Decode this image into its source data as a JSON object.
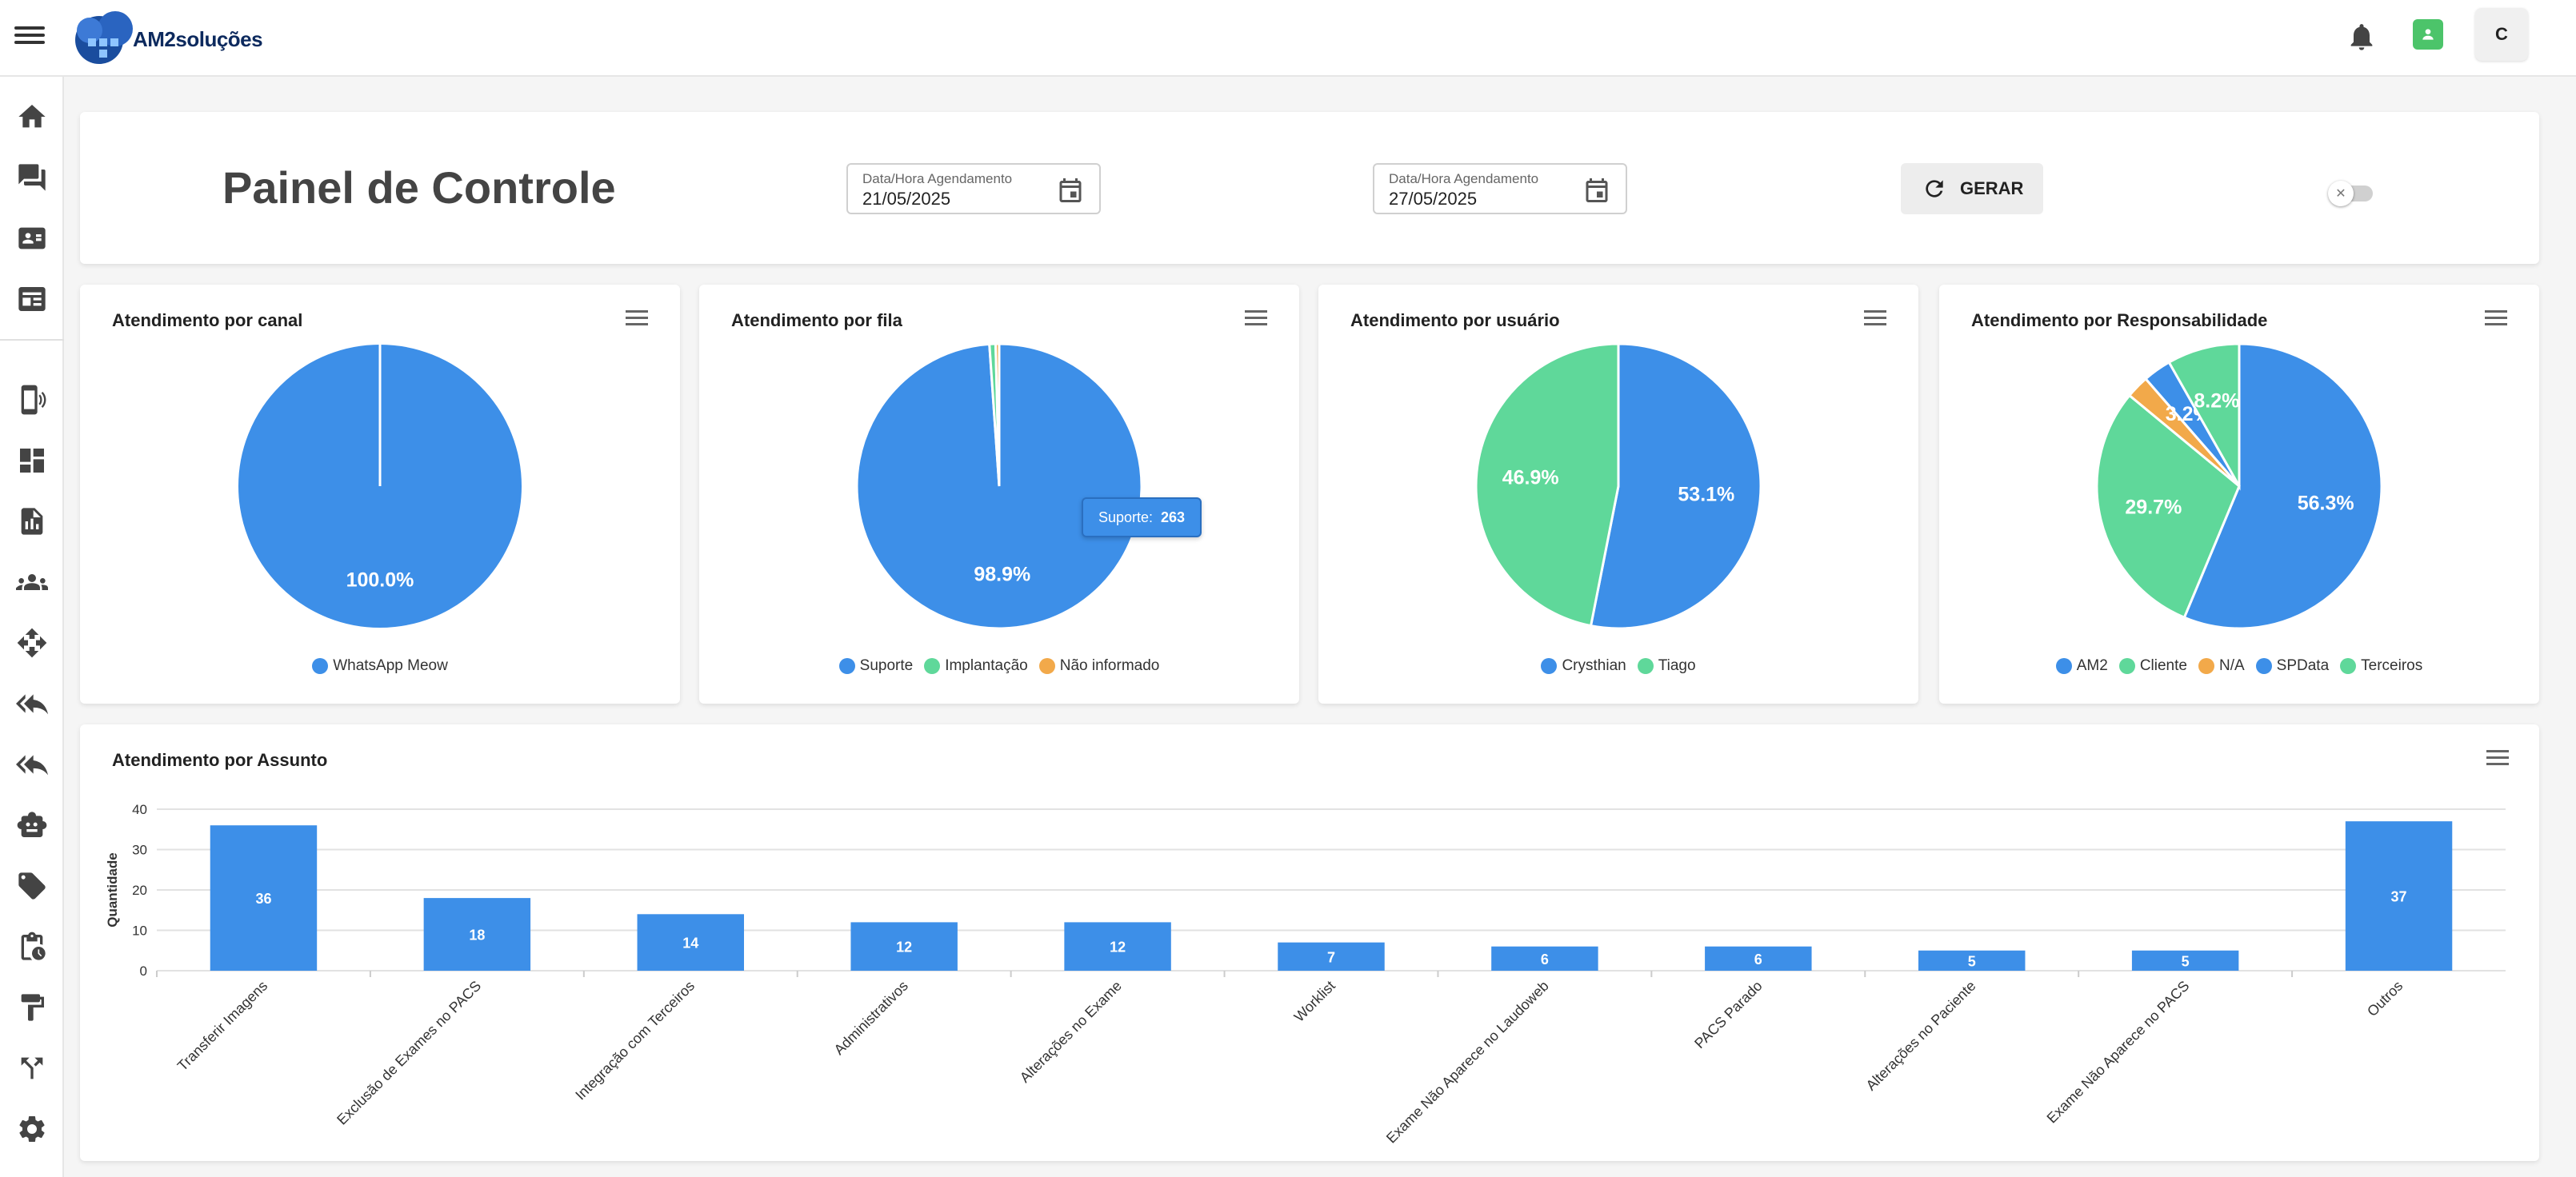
{
  "app": {
    "logo_text": "AM2soluções",
    "avatar_initial": "C"
  },
  "header": {
    "title": "Painel de Controle",
    "date_start": {
      "label": "Data/Hora Agendamento",
      "value": "21/05/2025"
    },
    "date_end": {
      "label": "Data/Hora Agendamento",
      "value": "27/05/2025"
    },
    "generate_label": "GERAR"
  },
  "tooltip": {
    "label": "Suporte:",
    "value": "263"
  },
  "colors": {
    "blue": "#3d8fe8",
    "green": "#5fd89a",
    "orange": "#f2a94a"
  },
  "chart_data": [
    {
      "type": "pie",
      "title": "Atendimento por canal",
      "slices": [
        {
          "name": "WhatsApp Meow",
          "value": 100.0,
          "label": "100.0%",
          "color": "#3d8fe8"
        }
      ]
    },
    {
      "type": "pie",
      "title": "Atendimento por fila",
      "slices": [
        {
          "name": "Suporte",
          "value": 98.9,
          "label": "98.9%",
          "color": "#3d8fe8"
        },
        {
          "name": "Implantação",
          "value": 0.7,
          "label": "",
          "color": "#5fd89a"
        },
        {
          "name": "Não informado",
          "value": 0.4,
          "label": "",
          "color": "#f2a94a"
        }
      ]
    },
    {
      "type": "pie",
      "title": "Atendimento por usuário",
      "slices": [
        {
          "name": "Crysthian",
          "value": 53.1,
          "label": "53.1%",
          "color": "#3d8fe8"
        },
        {
          "name": "Tiago",
          "value": 46.9,
          "label": "46.9%",
          "color": "#5fd89a"
        }
      ]
    },
    {
      "type": "pie",
      "title": "Atendimento por Responsabilidade",
      "slices": [
        {
          "name": "AM2",
          "value": 56.3,
          "label": "56.3%",
          "color": "#3d8fe8"
        },
        {
          "name": "Cliente",
          "value": 29.7,
          "label": "29.7%",
          "color": "#5fd89a"
        },
        {
          "name": "N/A",
          "value": 2.6,
          "label": "",
          "color": "#f2a94a"
        },
        {
          "name": "SPData",
          "value": 3.2,
          "label": "3.2%",
          "color": "#3d8fe8"
        },
        {
          "name": "Terceiros",
          "value": 8.2,
          "label": "8.2%",
          "color": "#5fd89a"
        }
      ]
    },
    {
      "type": "bar",
      "title": "Atendimento por Assunto",
      "ylabel": "Quantidade",
      "ylim": [
        0,
        40
      ],
      "yticks": [
        0,
        10,
        20,
        30,
        40
      ],
      "categories": [
        "Transferir Imagens",
        "Exclusão de Exames no PACS",
        "Integração com Terceiros",
        "Administrativos",
        "Alterações no Exame",
        "Worklist",
        "Exame Não Aparece no Laudoweb",
        "PACS Parado",
        "Alterações no Paciente",
        "Exame Não Aparece no PACS",
        "Outros"
      ],
      "values": [
        36,
        18,
        14,
        12,
        12,
        7,
        6,
        6,
        5,
        5,
        37
      ],
      "color": "#3d8fe8"
    }
  ]
}
